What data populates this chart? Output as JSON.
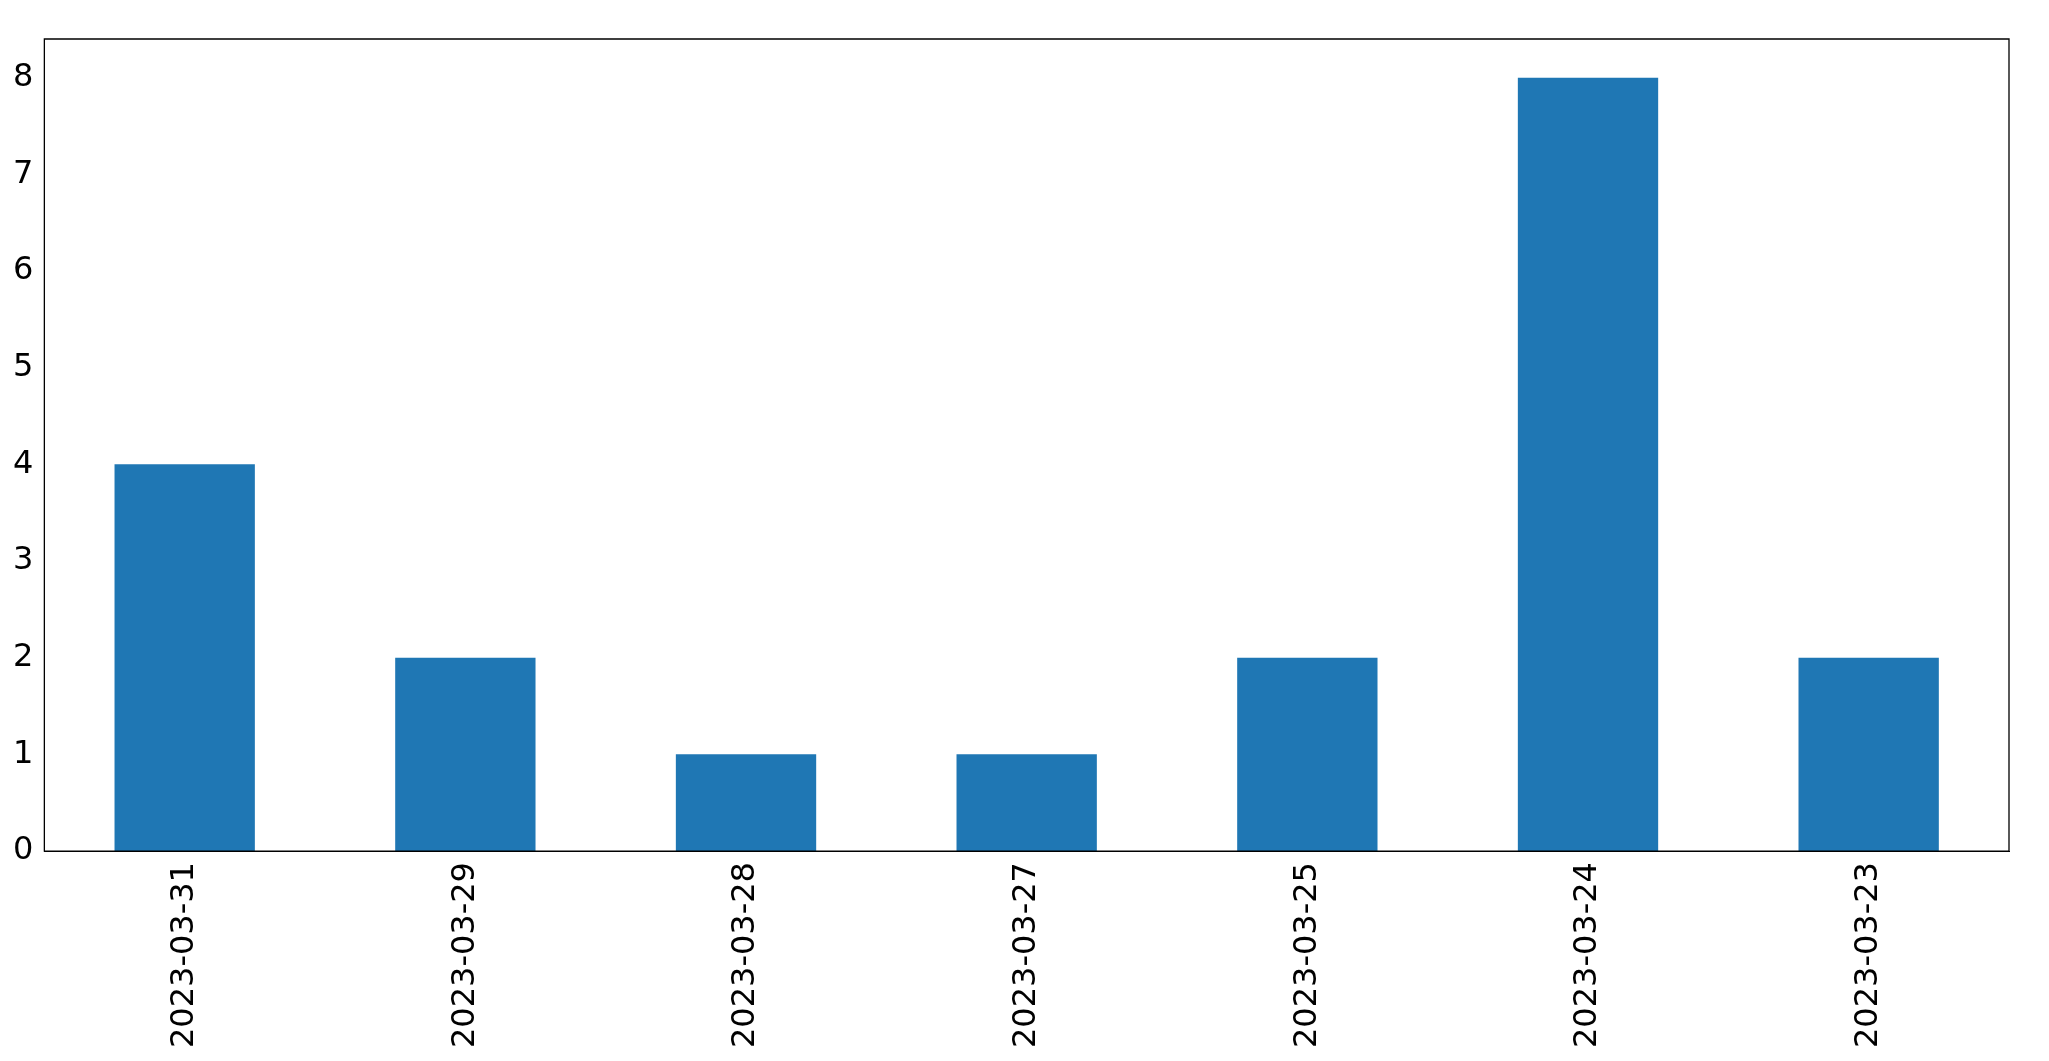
{
  "chart_data": {
    "type": "bar",
    "categories": [
      "2023-03-31",
      "2023-03-29",
      "2023-03-28",
      "2023-03-27",
      "2023-03-25",
      "2023-03-24",
      "2023-03-23"
    ],
    "values": [
      4,
      2,
      1,
      1,
      2,
      8,
      2
    ],
    "color": "#1f77b4",
    "ylim": [
      0,
      8.4
    ],
    "yticks": [
      0,
      1,
      2,
      3,
      4,
      5,
      6,
      7,
      8
    ],
    "grid": false,
    "legend": false
  }
}
